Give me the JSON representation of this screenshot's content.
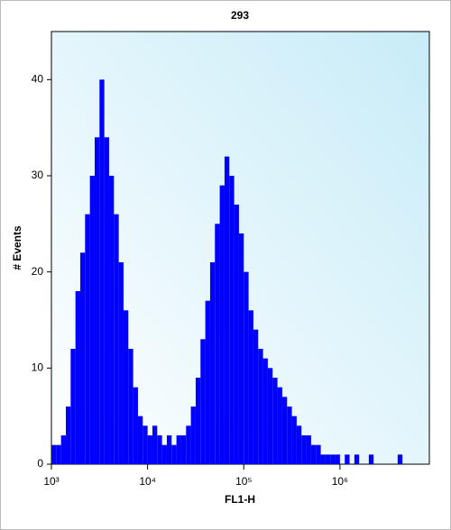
{
  "chart_data": {
    "type": "histogram",
    "title": "293",
    "xlabel": "FL1-H",
    "ylabel": "# Events",
    "xscale": "log",
    "color": "#0000ff",
    "bins": [
      1000,
      1122,
      1259,
      1413,
      1585,
      1778,
      1995,
      2239,
      2512,
      2818,
      3162,
      3548,
      3981,
      4467,
      5012,
      5623,
      6310,
      7079,
      7943,
      8913,
      10000,
      11220,
      12589,
      14125,
      15849,
      17783,
      19953,
      22387,
      25119,
      28184,
      31623,
      35481,
      39811,
      44668,
      50119,
      56234,
      63096,
      70795,
      79433,
      89125,
      100000,
      112202,
      125893,
      141254,
      158489,
      177828,
      199526,
      223872,
      251189,
      281838,
      316228,
      354813,
      398107,
      446684,
      501187,
      562341,
      630957,
      707946,
      794328,
      891251,
      1000000,
      1122018,
      1258925,
      1412538,
      1584893,
      1778279,
      1995262,
      2238721,
      2511886,
      2818383,
      3162278,
      3548134,
      3981072,
      4466836,
      5011872,
      5623413,
      6309573,
      7079458,
      7943282
    ],
    "values": [
      2,
      2,
      3,
      6,
      12,
      18,
      22,
      26,
      30,
      34,
      40,
      34,
      30,
      26,
      21,
      16,
      12,
      8,
      5,
      4,
      3,
      4,
      3,
      2,
      3,
      2,
      3,
      3,
      4,
      6,
      9,
      13,
      17,
      21,
      25,
      29,
      32,
      30,
      27,
      24,
      20,
      16,
      14,
      12,
      11,
      10,
      9,
      8,
      7,
      6,
      5,
      4,
      3,
      3,
      2,
      2,
      1,
      1,
      1,
      1,
      0,
      1,
      0,
      1,
      0,
      0,
      1,
      0,
      0,
      0,
      0,
      0,
      1,
      0,
      0,
      0,
      0,
      0
    ],
    "xlim": [
      1000,
      8500000
    ],
    "ylim": [
      0,
      45
    ],
    "xticks": [
      {
        "value": 1000,
        "label": "10³"
      },
      {
        "value": 10000,
        "label": "10⁴"
      },
      {
        "value": 100000,
        "label": "10⁵"
      },
      {
        "value": 1000000,
        "label": "10⁶"
      }
    ],
    "yticks": [
      0,
      10,
      20,
      30,
      40
    ]
  }
}
